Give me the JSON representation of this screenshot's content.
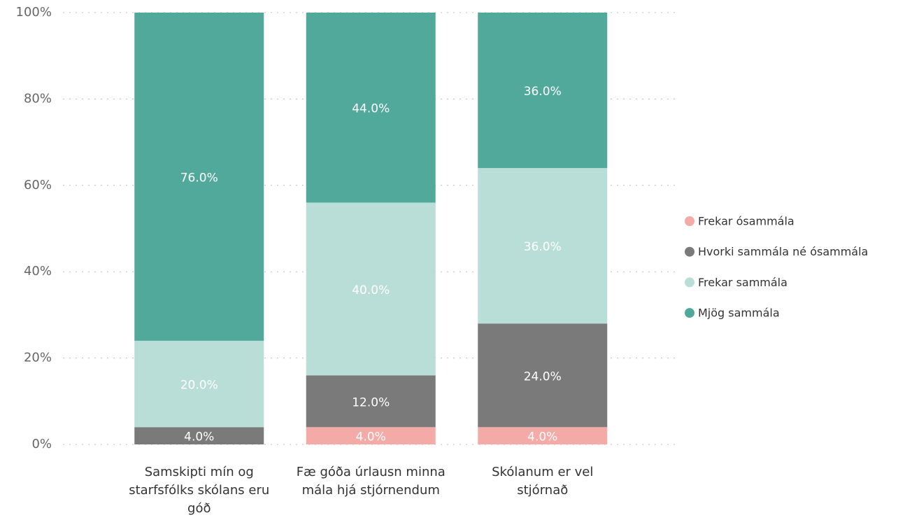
{
  "chart_data": {
    "type": "stacked_bar",
    "categories": [
      "Samskipti mín og starfsfólks skólans eru góð",
      "Fæ góða úrlausn minna mála hjá stjórnendum",
      "Skólanum er vel stjórnað"
    ],
    "series": [
      {
        "name": "Frekar ósammála",
        "color": "#f4aba8",
        "values": [
          null,
          4,
          4
        ],
        "value_labels": [
          null,
          "4.0%",
          "4.0%"
        ]
      },
      {
        "name": "Hvorki sammála né ósammála",
        "color": "#7a7a7a",
        "values": [
          4,
          12,
          24
        ],
        "value_labels": [
          "4.0%",
          "12.0%",
          "24.0%"
        ]
      },
      {
        "name": "Frekar sammála",
        "color": "#b9ded7",
        "values": [
          20,
          40,
          36
        ],
        "value_labels": [
          "20.0%",
          "40.0%",
          "36.0%"
        ]
      },
      {
        "name": "Mjög sammála",
        "color": "#51a99b",
        "values": [
          76,
          44,
          36
        ],
        "value_labels": [
          "76.0%",
          "44.0%",
          "36.0%"
        ]
      }
    ],
    "ylim": [
      0,
      100
    ],
    "yticks": [
      {
        "value": 0,
        "label": "0%"
      },
      {
        "value": 20,
        "label": "20%"
      },
      {
        "value": 40,
        "label": "40%"
      },
      {
        "value": 60,
        "label": "60%"
      },
      {
        "value": 80,
        "label": "80%"
      },
      {
        "value": 100,
        "label": "100%"
      }
    ],
    "grid": true,
    "legend": "right"
  }
}
